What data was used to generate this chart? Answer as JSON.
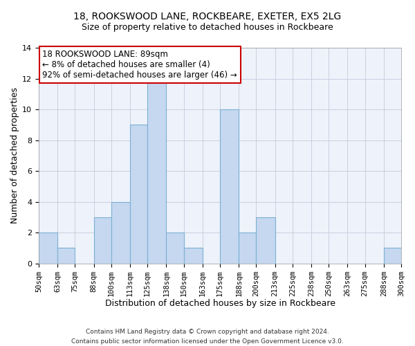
{
  "title": "18, ROOKSWOOD LANE, ROCKBEARE, EXETER, EX5 2LG",
  "subtitle": "Size of property relative to detached houses in Rockbeare",
  "xlabel": "Distribution of detached houses by size in Rockbeare",
  "ylabel": "Number of detached properties",
  "bin_edges": [
    50,
    63,
    75,
    88,
    100,
    113,
    125,
    138,
    150,
    163,
    175,
    188,
    200,
    213,
    225,
    238,
    250,
    263,
    275,
    288,
    300
  ],
  "bin_labels": [
    "50sqm",
    "63sqm",
    "75sqm",
    "88sqm",
    "100sqm",
    "113sqm",
    "125sqm",
    "138sqm",
    "150sqm",
    "163sqm",
    "175sqm",
    "188sqm",
    "200sqm",
    "213sqm",
    "225sqm",
    "238sqm",
    "250sqm",
    "263sqm",
    "275sqm",
    "288sqm",
    "300sqm"
  ],
  "counts": [
    2,
    1,
    0,
    3,
    4,
    9,
    12,
    2,
    1,
    0,
    10,
    2,
    3,
    0,
    0,
    0,
    0,
    0,
    0,
    1
  ],
  "bar_color": "#c5d8f0",
  "bar_edge_color": "#7bafd4",
  "ylim": [
    0,
    14
  ],
  "yticks": [
    0,
    2,
    4,
    6,
    8,
    10,
    12,
    14
  ],
  "grid_color": "#c8cfe0",
  "background_color": "#eef2fa",
  "annotation_text": "18 ROOKSWOOD LANE: 89sqm\n← 8% of detached houses are smaller (4)\n92% of semi-detached houses are larger (46) →",
  "annotation_box_color": "#ffffff",
  "annotation_box_edge_color": "#cc0000",
  "footer_line1": "Contains HM Land Registry data © Crown copyright and database right 2024.",
  "footer_line2": "Contains public sector information licensed under the Open Government Licence v3.0.",
  "title_fontsize": 10,
  "subtitle_fontsize": 9,
  "axis_label_fontsize": 9,
  "tick_fontsize": 7.5,
  "annotation_fontsize": 8.5,
  "footer_fontsize": 6.5
}
